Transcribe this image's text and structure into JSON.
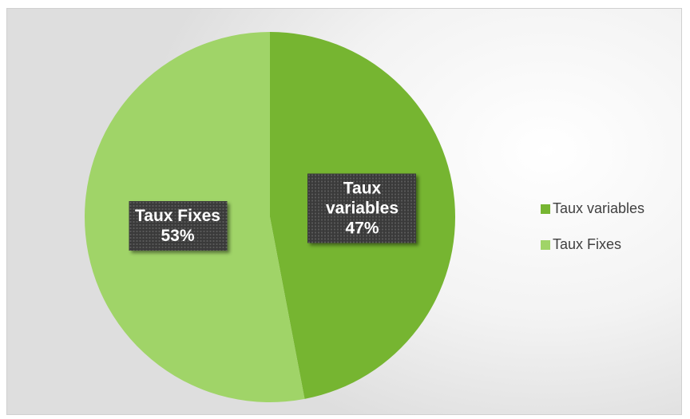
{
  "chart_data": {
    "type": "pie",
    "categories": [
      "Taux variables",
      "Taux Fixes"
    ],
    "values": [
      47,
      53
    ],
    "value_labels": [
      "47%",
      "53%"
    ],
    "colors": [
      "#76b531",
      "#a0d468"
    ],
    "legend": "right"
  }
}
